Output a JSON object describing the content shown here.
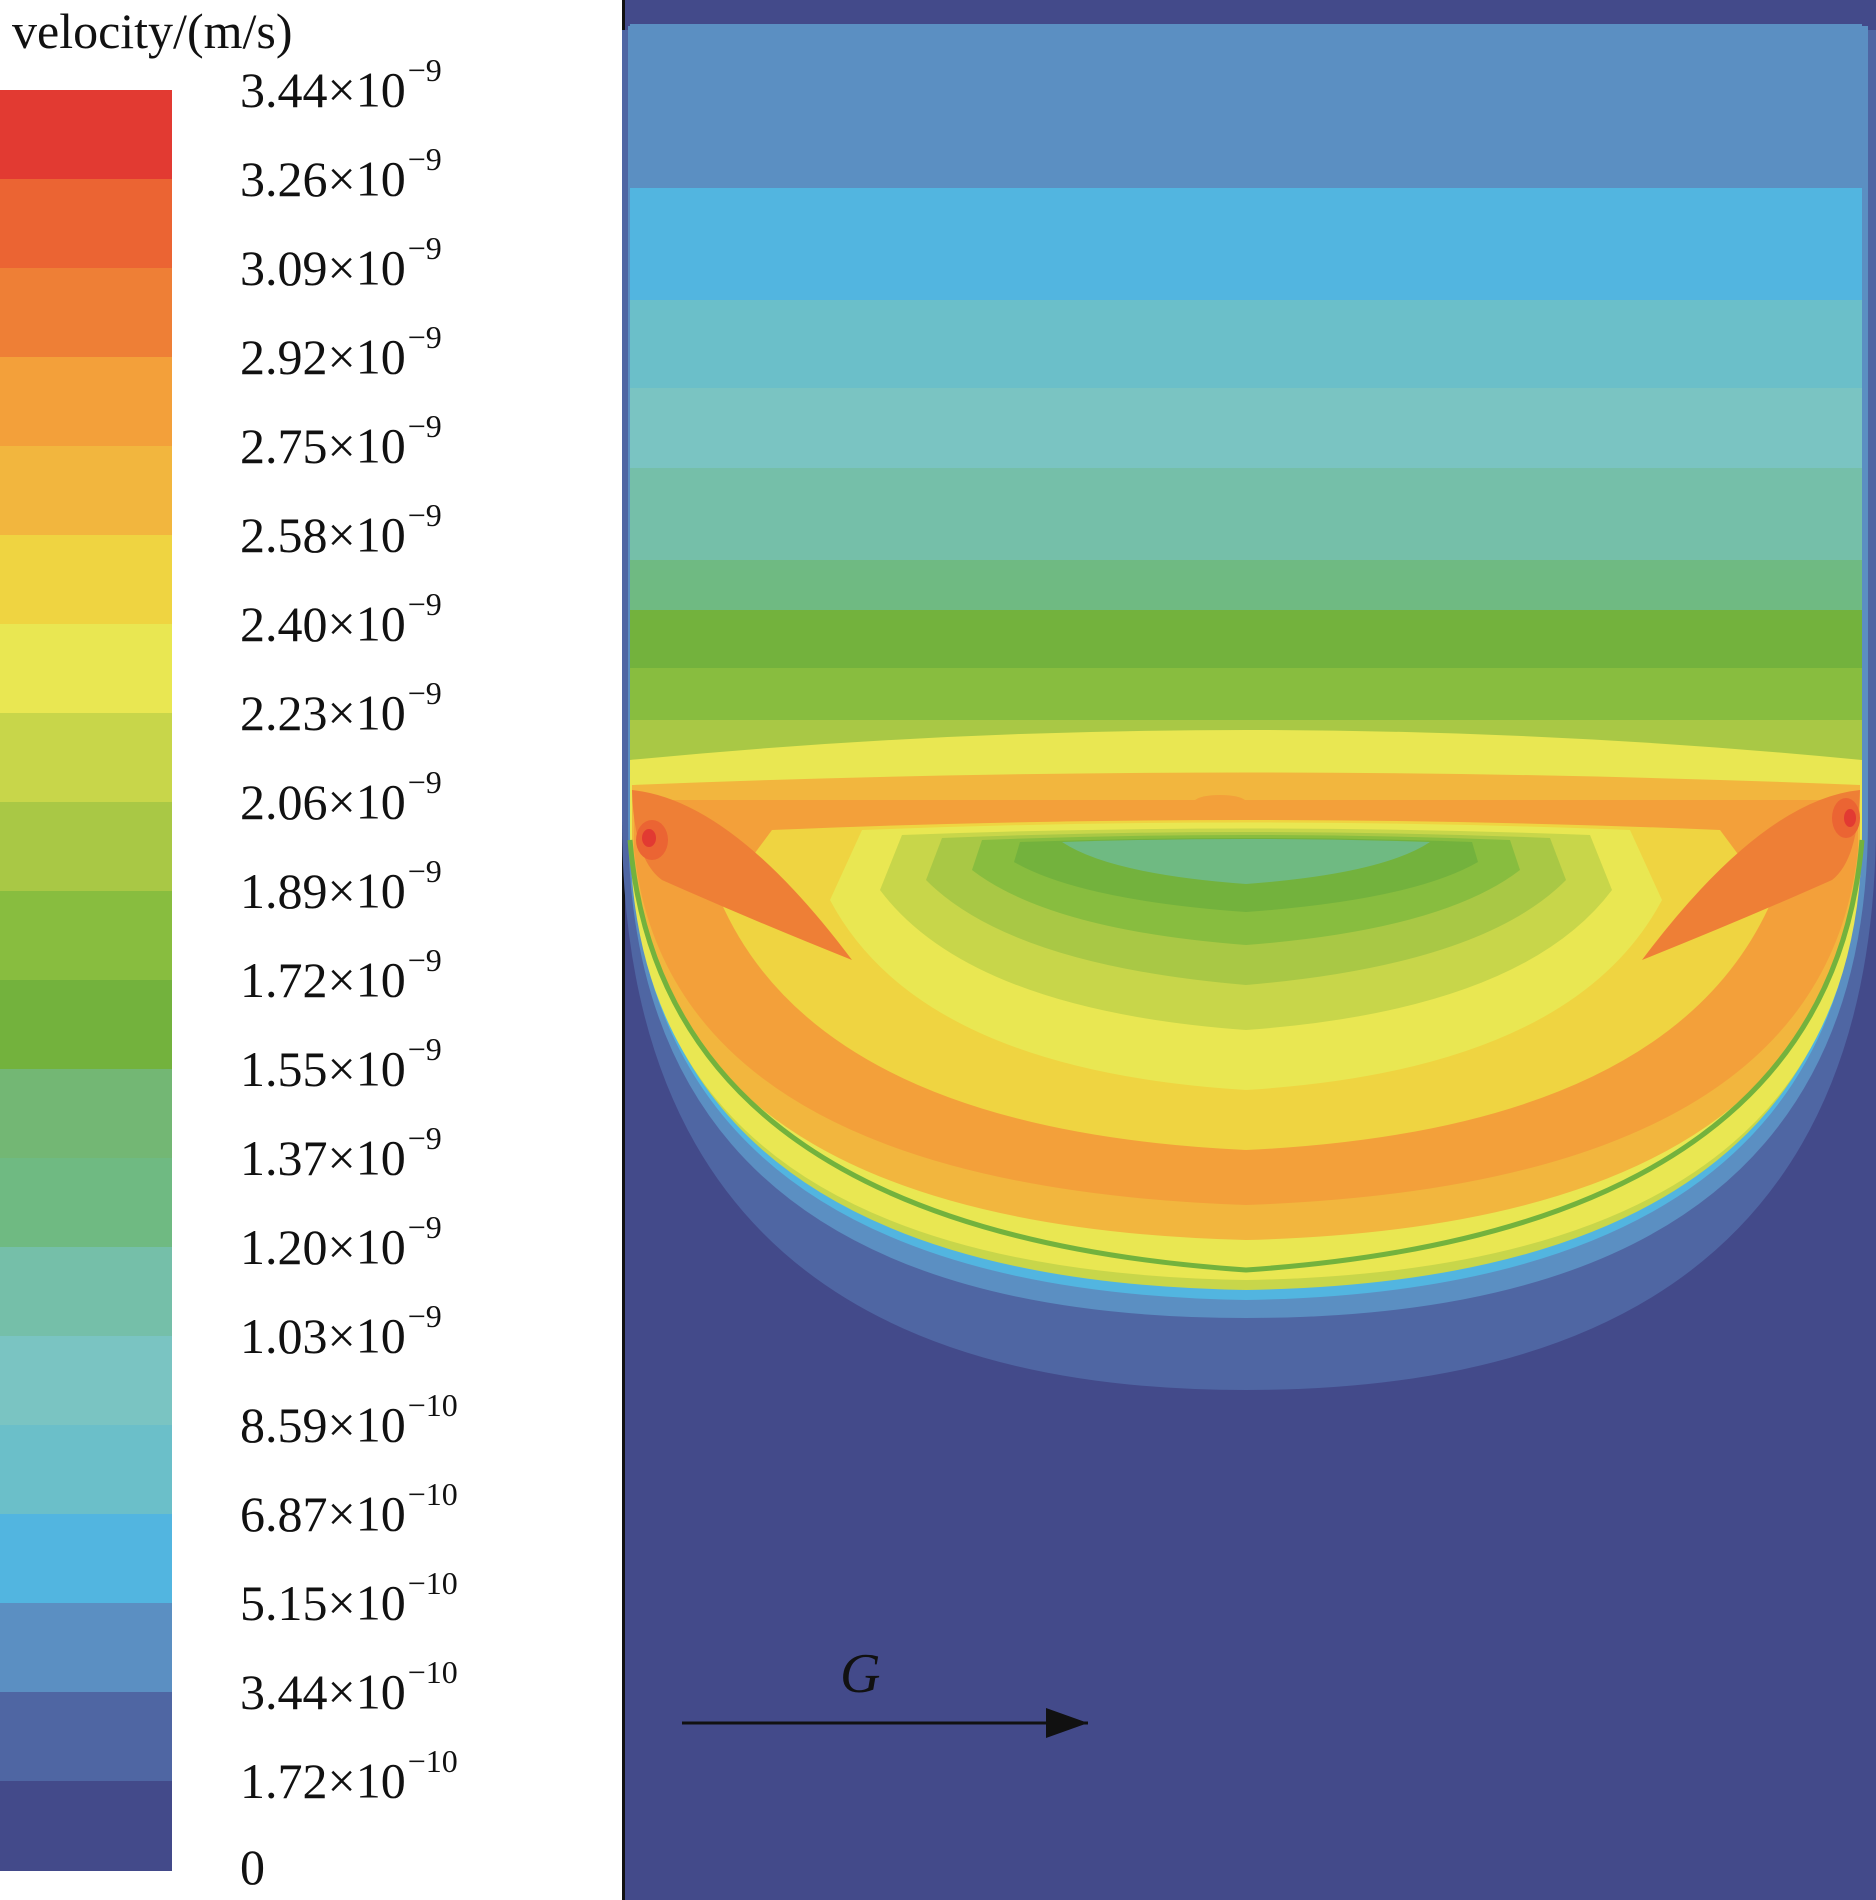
{
  "chart_data": {
    "type": "heatmap",
    "title": "",
    "colorbar": {
      "label": "velocity/(m/s)",
      "levels": [
        {
          "mantissa": "3.44",
          "exp": "−9",
          "value": 3.44e-09,
          "color": "#e23a32"
        },
        {
          "mantissa": "3.26",
          "exp": "−9",
          "value": 3.26e-09,
          "color": "#eb6433"
        },
        {
          "mantissa": "3.09",
          "exp": "−9",
          "value": 3.09e-09,
          "color": "#ee7f36"
        },
        {
          "mantissa": "2.92",
          "exp": "−9",
          "value": 2.92e-09,
          "color": "#f3a03a"
        },
        {
          "mantissa": "2.75",
          "exp": "−9",
          "value": 2.75e-09,
          "color": "#f2b63e"
        },
        {
          "mantissa": "2.58",
          "exp": "−9",
          "value": 2.58e-09,
          "color": "#efd441"
        },
        {
          "mantissa": "2.40",
          "exp": "−9",
          "value": 2.4e-09,
          "color": "#e9e752"
        },
        {
          "mantissa": "2.23",
          "exp": "−9",
          "value": 2.23e-09,
          "color": "#c8d64a"
        },
        {
          "mantissa": "2.06",
          "exp": "−9",
          "value": 2.06e-09,
          "color": "#a9c845"
        },
        {
          "mantissa": "1.89",
          "exp": "−9",
          "value": 1.89e-09,
          "color": "#88bd3f"
        },
        {
          "mantissa": "1.72",
          "exp": "−9",
          "value": 1.72e-09,
          "color": "#73b23d"
        },
        {
          "mantissa": "1.55",
          "exp": "−9",
          "value": 1.55e-09,
          "color": "#73b774"
        },
        {
          "mantissa": "1.37",
          "exp": "−9",
          "value": 1.37e-09,
          "color": "#6fba82"
        },
        {
          "mantissa": "1.20",
          "exp": "−9",
          "value": 1.2e-09,
          "color": "#75bfa9"
        },
        {
          "mantissa": "1.03",
          "exp": "−9",
          "value": 1.03e-09,
          "color": "#7ac4c2"
        },
        {
          "mantissa": "8.59",
          "exp": "−10",
          "value": 8.59e-10,
          "color": "#6bbfc9"
        },
        {
          "mantissa": "6.87",
          "exp": "−10",
          "value": 6.87e-10,
          "color": "#52b5e0"
        },
        {
          "mantissa": "5.15",
          "exp": "−10",
          "value": 5.15e-10,
          "color": "#5b8fc2"
        },
        {
          "mantissa": "3.44",
          "exp": "−10",
          "value": 3.44e-10,
          "color": "#4f66a3"
        },
        {
          "mantissa": "1.72",
          "exp": "−10",
          "value": 1.72e-10,
          "color": "#434a8a"
        },
        {
          "mantissa": "0",
          "exp": "",
          "value": 0,
          "color": ""
        }
      ]
    },
    "annotation": {
      "label": "G",
      "meaning": "gravity direction arrow, pointing right"
    },
    "field_colors": {
      "background": "#434a8a",
      "ring": "#4f66a3",
      "top_band": "#5b8fc2"
    }
  }
}
